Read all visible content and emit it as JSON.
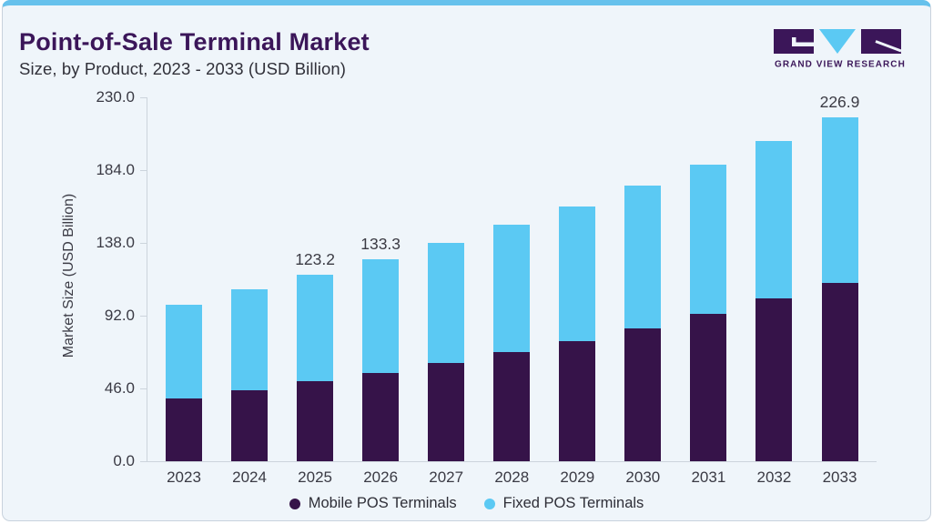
{
  "header": {
    "title": "Point-of-Sale Terminal Market",
    "subtitle": "Size, by Product, 2023 - 2033 (USD Billion)"
  },
  "logo": {
    "brand": "GRAND VIEW RESEARCH"
  },
  "chart_data": {
    "type": "bar",
    "stacked": true,
    "title": "Point-of-Sale Terminal Market Size, by Product, 2023 - 2033 (USD Billion)",
    "categories": [
      "2023",
      "2024",
      "2025",
      "2026",
      "2027",
      "2028",
      "2029",
      "2030",
      "2031",
      "2032",
      "2033"
    ],
    "series": [
      {
        "name": "Mobile POS Terminals",
        "color": "#361349",
        "values": [
          41.5,
          46.9,
          52.6,
          58.3,
          64.9,
          72.1,
          79.3,
          87.9,
          97.1,
          107.3,
          117.7
        ]
      },
      {
        "name": "Fixed POS Terminals",
        "color": "#5bc9f3",
        "values": [
          61.8,
          66.6,
          70.6,
          75.0,
          79.2,
          84.0,
          88.8,
          94.0,
          98.6,
          104.0,
          109.2
        ]
      }
    ],
    "totals": [
      103.3,
      113.5,
      123.2,
      133.3,
      144.1,
      156.1,
      168.1,
      181.9,
      195.7,
      211.3,
      226.9
    ],
    "bar_labels": [
      "",
      "",
      "123.2",
      "133.3",
      "",
      "",
      "",
      "",
      "",
      "",
      "226.9"
    ],
    "ylabel": "Market Size (USD Billion)",
    "xlabel": "",
    "yticks": [
      "0.0",
      "46.0",
      "92.0",
      "138.0",
      "184.0",
      "230.0"
    ],
    "ytick_values": [
      0,
      46,
      92,
      138,
      184,
      230
    ],
    "ylim": [
      0,
      230
    ],
    "grid": false,
    "legend_position": "bottom"
  },
  "colors": {
    "accent_purple": "#3b1659",
    "bar_purple": "#361349",
    "bar_cyan": "#5bc9f3",
    "top_strip": "#66c1ec",
    "card_bg": "#eff5fa",
    "axis": "#ccd4dc",
    "text": "#3a3a44"
  }
}
